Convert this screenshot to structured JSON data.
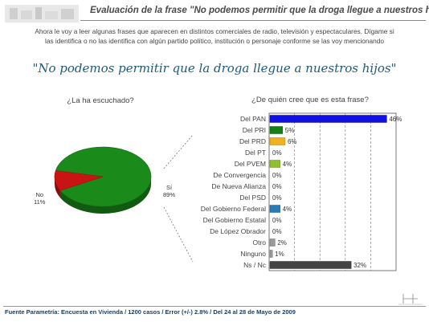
{
  "header": {
    "title": "Evaluación de la frase \"No podemos permitir que la droga llegue a nuestros hijos\""
  },
  "intro": {
    "line1": "Ahora le voy a leer algunas frases que aparecen en distintos comerciales de radio, televisión y espectaculares. Dígame si",
    "line2": "las identifica o no las identifica con algún partido político, institución o personaje conforme se las voy mencionando"
  },
  "quote": "\"No podemos permitir que la droga llegue a nuestros hijos\"",
  "colors": {
    "pie_si": "#1a8a1a",
    "pie_no": "#c81414",
    "bar_pan": "#1010e0",
    "bar_pri": "#128012",
    "bar_prd": "#f0b020",
    "bar_pvem": "#90c030",
    "bar_gob_federal": "#2a7ab8",
    "bar_gray": "#9a9a9a",
    "bar_nsnc": "#444444"
  },
  "chart_data": [
    {
      "type": "pie",
      "title": "¿La ha escuchado?",
      "categories": [
        "Sí",
        "No"
      ],
      "values": [
        89,
        11
      ],
      "labels": [
        "89%",
        "11%"
      ]
    },
    {
      "type": "bar",
      "orientation": "horizontal",
      "title": "¿De quién cree que es esta frase?",
      "categories": [
        "Del PAN",
        "Del PRI",
        "Del PRD",
        "Del PT",
        "Del PVEM",
        "De Convergencia",
        "De Nueva Alianza",
        "Del PSD",
        "Del Gobierno Federal",
        "Del Gobierno Estatal",
        "De López Obrador",
        "Otro",
        "Ninguno",
        "Ns / Nc"
      ],
      "values": [
        46,
        5,
        6,
        0,
        4,
        0,
        0,
        0,
        4,
        0,
        0,
        2,
        1,
        32
      ],
      "value_labels": [
        "46%",
        "5%",
        "6%",
        "0%",
        "4%",
        "0%",
        "0%",
        "0%",
        "4%",
        "0%",
        "0%",
        "2%",
        "1%",
        "32%"
      ],
      "xlim": [
        0,
        50
      ],
      "grid": "vertical dashed"
    }
  ],
  "footer": "Fuente Parametría: Encuesta en Vivienda / 1200 casos / Error (+/-) 2.8% / Del 24 al 28 de Mayo de 2009"
}
